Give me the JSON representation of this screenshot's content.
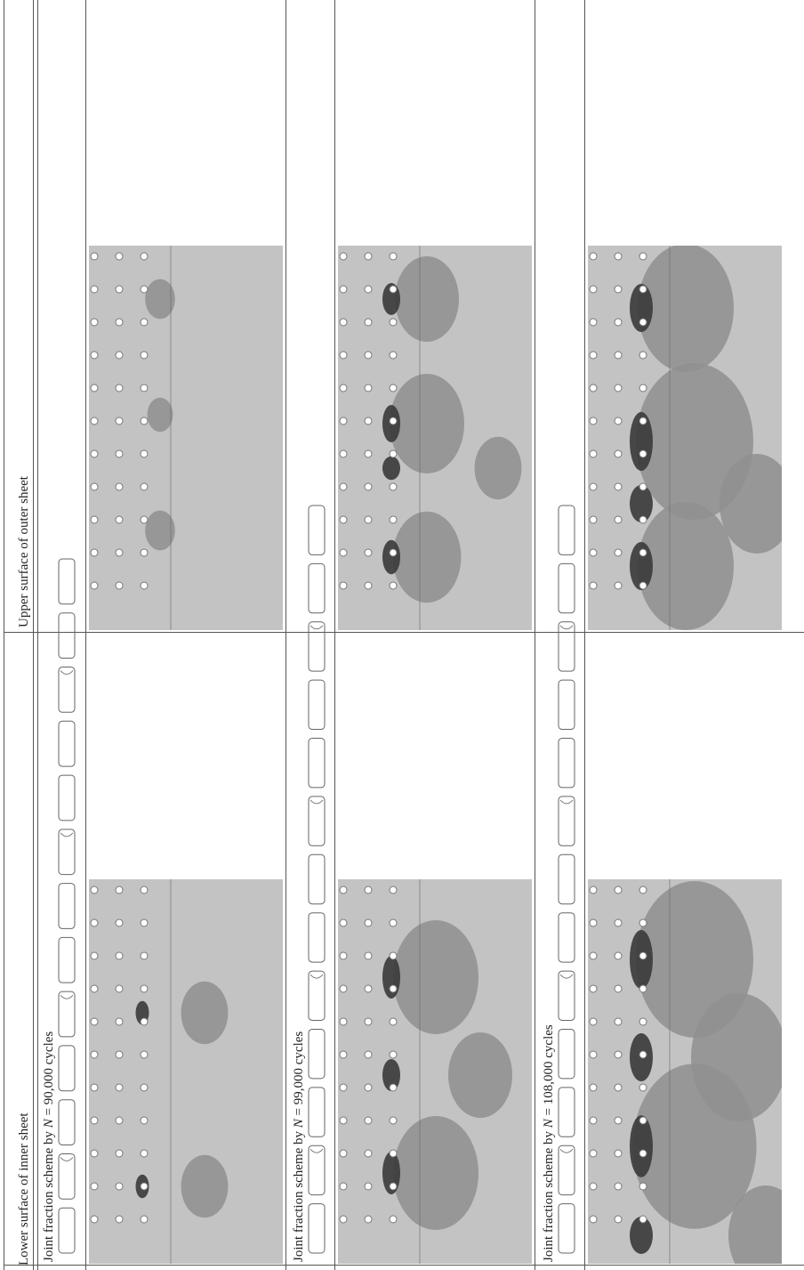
{
  "header": {
    "left_column": "Lower surface of inner sheet",
    "right_column": "Upper surface of outer sheet"
  },
  "rows": [
    {
      "caption_prefix": "Joint fraction scheme by ",
      "caption_var": "N",
      "caption_suffix": " = 90,000 cycles"
    },
    {
      "caption_prefix": "Joint fraction scheme by ",
      "caption_var": "N",
      "caption_suffix": " = 99,000 cycles"
    },
    {
      "caption_prefix": "Joint fraction scheme by ",
      "caption_var": "N",
      "caption_suffix": " = 108,000 cycles"
    }
  ],
  "colors": {
    "panel_gray": "#c3c3c3",
    "mid_gray": "#8f8f8f",
    "dark_gray": "#3a3a3a",
    "rule": "#555555"
  }
}
